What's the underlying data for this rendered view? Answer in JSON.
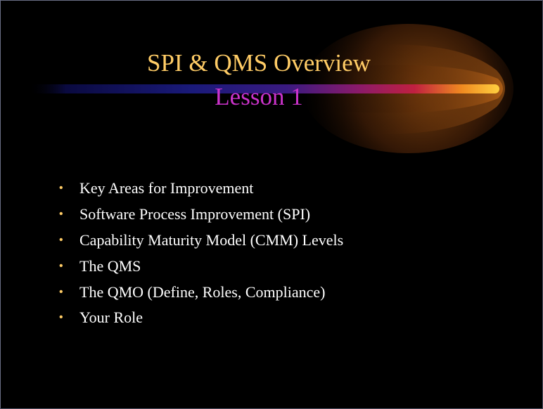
{
  "slide": {
    "title": "SPI & QMS Overview",
    "subtitle": "Lesson 1",
    "bullet_symbol": "•",
    "bullets": [
      "Key Areas for Improvement",
      "Software Process Improvement (SPI)",
      "Capability Maturity Model (CMM) Levels",
      "The QMS",
      "The QMO (Define, Roles, Compliance)",
      "Your Role"
    ]
  },
  "colors": {
    "background": "#000000",
    "title": "#ffcc66",
    "subtitle": "#cc33cc",
    "bullet_text": "#ffffff",
    "bullet_marker": "#ffcc66"
  },
  "decoration": {
    "comet": "comet-streak-graphic"
  }
}
